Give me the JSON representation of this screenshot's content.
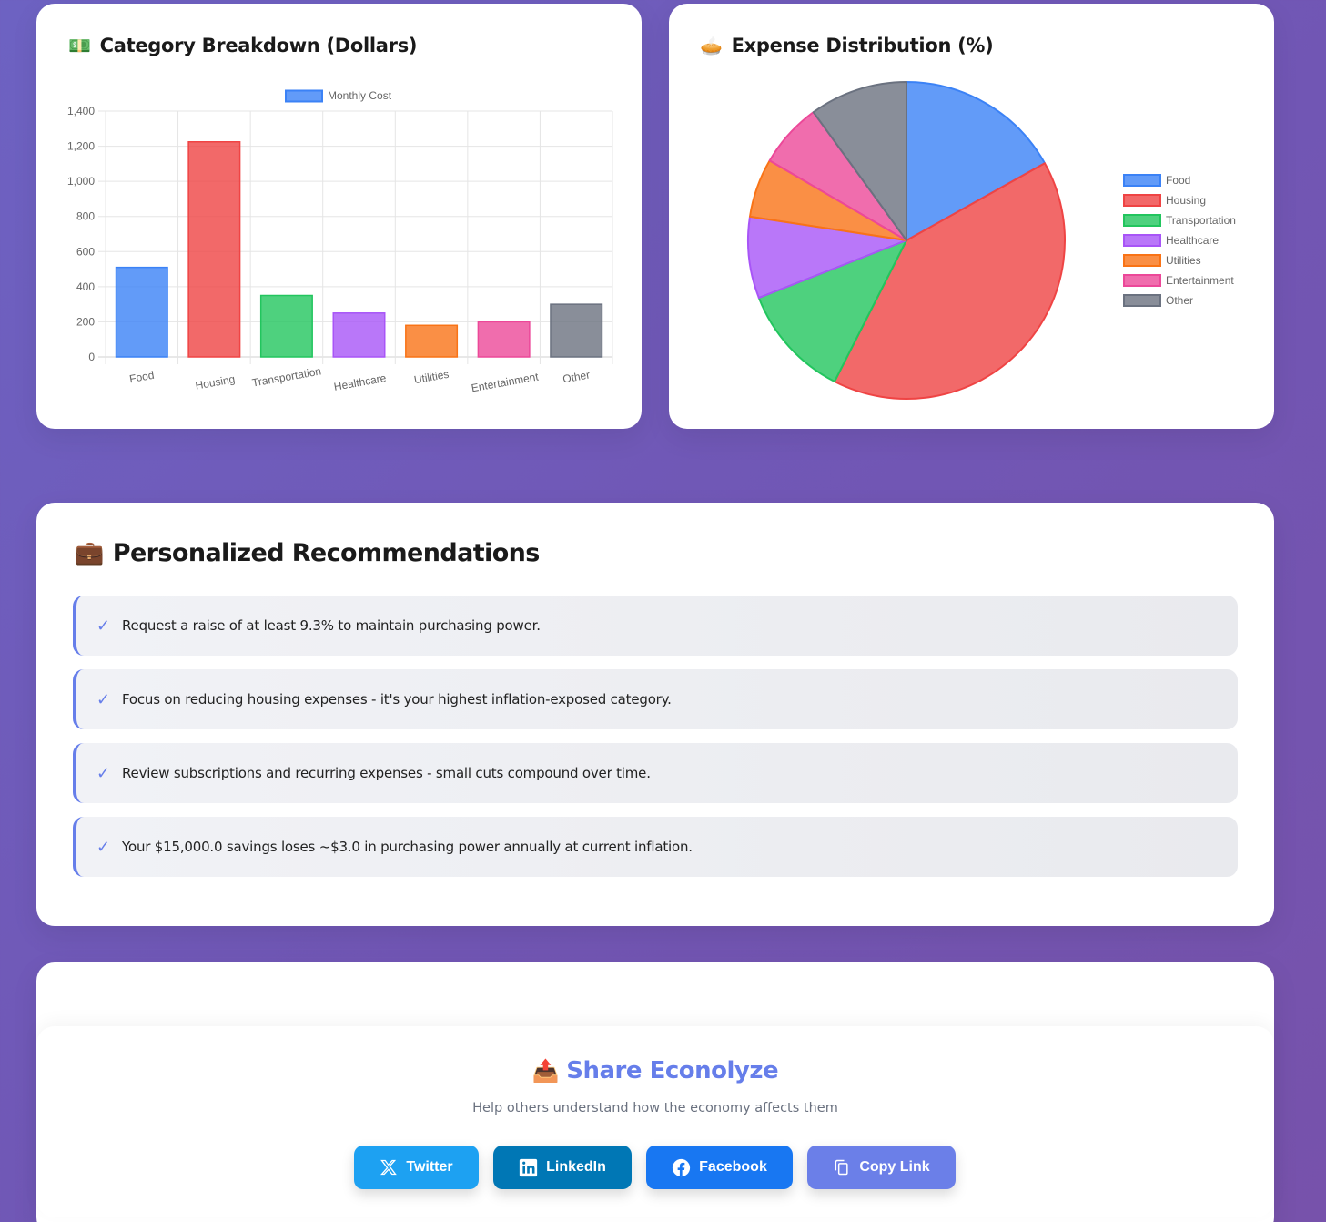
{
  "bar_card": {
    "title": "Category Breakdown (Dollars)",
    "icon": "money-icon",
    "emoji": "💵"
  },
  "pie_card": {
    "title": "Expense Distribution (%)",
    "icon": "pie-icon",
    "emoji": "🥧"
  },
  "chart_data": [
    {
      "type": "bar",
      "title": "Category Breakdown (Dollars)",
      "legend": [
        "Monthly Cost"
      ],
      "legend_position": "top",
      "categories": [
        "Food",
        "Housing",
        "Transportation",
        "Healthcare",
        "Utilities",
        "Entertainment",
        "Other"
      ],
      "values": [
        510,
        1225,
        350,
        250,
        180,
        200,
        300
      ],
      "colors": [
        "#3b82f6",
        "#ef4444",
        "#22c55e",
        "#a855f7",
        "#f97316",
        "#ec4899",
        "#6b7280"
      ],
      "xlabel": "",
      "ylabel": "",
      "ylim": [
        0,
        1400
      ],
      "yticks": [
        "0",
        "200",
        "400",
        "600",
        "800",
        "1,000",
        "1,200",
        "1,400"
      ],
      "grid": true
    },
    {
      "type": "pie",
      "title": "Expense Distribution (%)",
      "legend_position": "right",
      "labels": [
        "Food",
        "Housing",
        "Transportation",
        "Healthcare",
        "Utilities",
        "Entertainment",
        "Other"
      ],
      "values": [
        16.9,
        40.6,
        11.6,
        8.3,
        6.0,
        6.6,
        10.0
      ],
      "colors": [
        "#3b82f6",
        "#ef4444",
        "#22c55e",
        "#a855f7",
        "#f97316",
        "#ec4899",
        "#6b7280"
      ]
    }
  ],
  "recommendations": {
    "title": "Personalized Recommendations",
    "emoji": "💼",
    "check": "✓",
    "items": [
      "Request a raise of at least 9.3% to maintain purchasing power.",
      "Focus on reducing housing expenses - it's your highest inflation-exposed category.",
      "Review subscriptions and recurring expenses - small cuts compound over time.",
      "Your $15,000.0 savings loses ~$3.0 in purchasing power annually at current inflation."
    ]
  },
  "share": {
    "emoji": "📤",
    "title": "Share Econolyze",
    "subtitle": "Help others understand how the economy affects them",
    "buttons": [
      {
        "label": "Twitter",
        "icon": "x-icon",
        "color": "#1da1f2"
      },
      {
        "label": "LinkedIn",
        "icon": "linkedin-icon",
        "color": "#0077b5"
      },
      {
        "label": "Facebook",
        "icon": "facebook-icon",
        "color": "#1877f2"
      },
      {
        "label": "Copy Link",
        "icon": "copy-icon",
        "color": "#667eea"
      }
    ]
  }
}
